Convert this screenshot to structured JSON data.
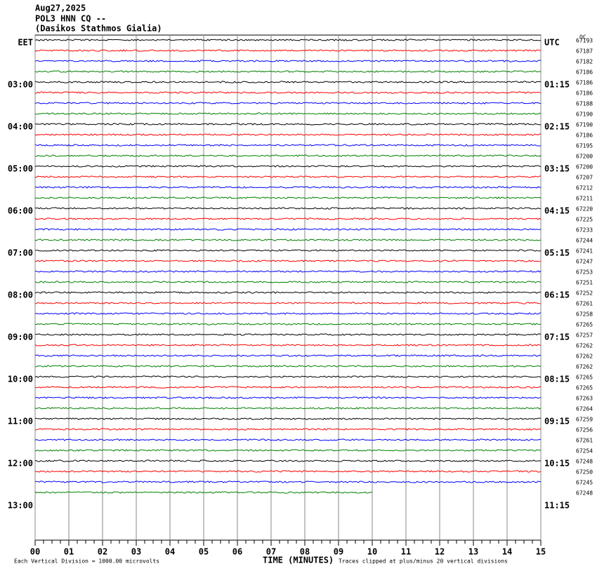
{
  "header": {
    "date": "Aug27,2025",
    "station": "POL3 HNN CQ --",
    "location": "(Dasikos Stathmos Gialia)",
    "corner": "OC"
  },
  "left_labels": [
    "EET",
    "03:00",
    "04:00",
    "05:00",
    "06:00",
    "07:00",
    "08:00",
    "09:00",
    "10:00",
    "11:00",
    "12:00",
    "13:00"
  ],
  "right_labels": [
    "UTC",
    "01:15",
    "02:15",
    "03:15",
    "04:15",
    "05:15",
    "06:15",
    "07:15",
    "08:15",
    "09:15",
    "10:15",
    "11:15"
  ],
  "trace_colors": [
    "#000000",
    "#ff0000",
    "#0000ff",
    "#008000"
  ],
  "trace_counts": [
    67193,
    67187,
    67182,
    67186,
    67186,
    67186,
    67188,
    67190,
    67190,
    67186,
    67195,
    67200,
    67200,
    67207,
    67212,
    67211,
    67220,
    67225,
    67233,
    67244,
    67241,
    67247,
    67253,
    67251,
    67252,
    67261,
    67258,
    67265,
    67257,
    67262,
    67262,
    67262,
    67265,
    67265,
    67263,
    67264,
    67259,
    67256,
    67261,
    67254,
    67248,
    67250,
    67245,
    67248
  ],
  "x_axis": {
    "title": "TIME (MINUTES)",
    "xlim": [
      0,
      15
    ],
    "xticks": [
      {
        "value": 0,
        "label": "00"
      },
      {
        "value": 1,
        "label": "01"
      },
      {
        "value": 2,
        "label": "02"
      },
      {
        "value": 3,
        "label": "03"
      },
      {
        "value": 4,
        "label": "04"
      },
      {
        "value": 5,
        "label": "05"
      },
      {
        "value": 6,
        "label": "06"
      },
      {
        "value": 7,
        "label": "07"
      },
      {
        "value": 8,
        "label": "08"
      },
      {
        "value": 9,
        "label": "09"
      },
      {
        "value": 10,
        "label": "10"
      },
      {
        "value": 11,
        "label": "11"
      },
      {
        "value": 12,
        "label": "12"
      },
      {
        "value": 13,
        "label": "13"
      },
      {
        "value": 14,
        "label": "14"
      },
      {
        "value": 15,
        "label": "15"
      }
    ]
  },
  "footer": {
    "scale_note": "Each Vertical Division = 1000.00 microvolts",
    "clip_note": "Traces clipped at plus/minus 20 vertical divisions"
  }
}
